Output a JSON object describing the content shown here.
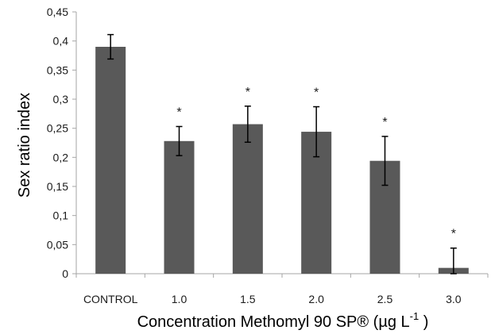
{
  "chart_data": {
    "type": "bar",
    "categories": [
      "CONTROL",
      "1.0",
      "1.5",
      "2.0",
      "2.5",
      "3.0"
    ],
    "values": [
      0.39,
      0.228,
      0.257,
      0.244,
      0.194,
      0.01
    ],
    "errors": [
      0.021,
      0.025,
      0.031,
      0.043,
      0.042,
      0.034
    ],
    "annotations": [
      "",
      "*",
      "*",
      "*",
      "*",
      "*"
    ],
    "yticks": [
      "0",
      "0,05",
      "0,1",
      "0,15",
      "0,2",
      "0,25",
      "0,3",
      "0,35",
      "0,4",
      "0,45"
    ],
    "ylim": [
      0,
      0.45
    ],
    "xlabel": "Concentration Methomyl 90 SP® (µg L",
    "xlabel_sup": "-1",
    "xlabel_end": " )",
    "ylabel": "Sex ratio index",
    "grid": false,
    "bar_color": "#595959",
    "axis_color": "#a6a6a6"
  }
}
